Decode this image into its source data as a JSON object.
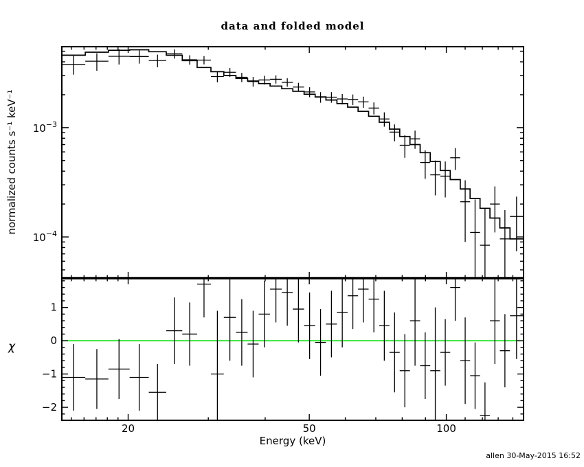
{
  "title": "data and folded model",
  "footer": "allen 30-May-2015 16:52",
  "colors": {
    "foreground": "#000000",
    "background": "#ffffff",
    "model_line": "#000000",
    "data_points": "#000000",
    "zero_line": "#00e000"
  },
  "chart_data": {
    "type": "scatter",
    "title": "data and folded model",
    "xlabel": "Energy (keV)",
    "x_scale": "log",
    "x_range_kev": [
      14.3,
      147.8
    ],
    "x_major_ticks": [
      {
        "value": 20,
        "label": "20"
      },
      {
        "value": 50,
        "label": "50"
      },
      {
        "value": 100,
        "label": "100"
      }
    ],
    "x_minor_ticks": [
      15,
      16,
      17,
      18,
      19,
      30,
      40,
      60,
      70,
      80,
      90,
      110,
      120,
      130,
      140
    ],
    "top_panel": {
      "ylabel": "normalized counts s⁻¹ keV⁻¹",
      "y_scale": "log",
      "y_range": [
        4.2e-05,
        0.0055
      ],
      "y_major_ticks": [
        {
          "value": 0.001,
          "base": "10",
          "exp": "−3"
        },
        {
          "value": 0.0001,
          "base": "10",
          "exp": "−4"
        }
      ],
      "y_minor_ticks": [
        0.005,
        0.004,
        0.003,
        0.002,
        0.0009,
        0.0008,
        0.0007,
        0.0006,
        0.0005,
        0.0004,
        0.0003,
        0.0002,
        9e-05,
        8e-05,
        7e-05,
        6e-05,
        5e-05
      ],
      "series": [
        "data",
        "folded model"
      ]
    },
    "bottom_panel": {
      "ylabel": "χ",
      "y_scale": "linear",
      "y_range": [
        -2.39,
        1.88
      ],
      "zero_line": 0,
      "y_major_ticks": [
        {
          "value": 1,
          "label": "1"
        },
        {
          "value": 0,
          "label": "0"
        },
        {
          "value": -1,
          "label": "−1"
        },
        {
          "value": -2,
          "label": "−2"
        }
      ],
      "y_minor_ticks": [
        1.8,
        1.6,
        1.4,
        1.2,
        0.8,
        0.6,
        0.4,
        0.2,
        -0.2,
        -0.4,
        -0.6,
        -0.8,
        -1.2,
        -1.4,
        -1.6,
        -1.8,
        -2.2
      ]
    },
    "bin_fields": [
      "e_lo_kev",
      "e_hi_kev",
      "model",
      "data",
      "data_err",
      "chi",
      "chi_err"
    ],
    "bins": [
      [
        14.3,
        16.1,
        0.0046,
        0.00379,
        0.00074,
        -1.1,
        1.0
      ],
      [
        16.1,
        18.1,
        0.0049,
        0.00405,
        0.00074,
        -1.15,
        0.9
      ],
      [
        18.1,
        20.15,
        0.0051,
        0.00449,
        0.00071,
        -0.85,
        0.9
      ],
      [
        20.15,
        22.2,
        0.00515,
        0.00447,
        0.00062,
        -1.1,
        1.0
      ],
      [
        22.2,
        24.25,
        0.00495,
        0.00411,
        0.00054,
        -1.55,
        0.85
      ],
      [
        24.25,
        26.3,
        0.0046,
        0.00474,
        0.00046,
        0.3,
        1.0
      ],
      [
        26.3,
        28.35,
        0.0041,
        0.00418,
        0.00041,
        0.2,
        0.95
      ],
      [
        28.35,
        30.4,
        0.00355,
        0.00415,
        0.00036,
        1.7,
        1.0
      ],
      [
        30.4,
        32.45,
        0.00325,
        0.00293,
        0.00033,
        -1.0,
        1.9
      ],
      [
        32.45,
        34.5,
        0.003,
        0.00321,
        0.0003,
        0.7,
        1.3
      ],
      [
        34.5,
        36.6,
        0.00282,
        0.00289,
        0.00028,
        0.25,
        1.0
      ],
      [
        36.6,
        38.7,
        0.00267,
        0.00264,
        0.00027,
        -0.1,
        1.0
      ],
      [
        38.7,
        41.0,
        0.00253,
        0.00273,
        0.00025,
        0.8,
        1.0
      ],
      [
        41.0,
        43.5,
        0.0024,
        0.00277,
        0.00024,
        1.55,
        1.0
      ],
      [
        43.5,
        46.0,
        0.00227,
        0.0026,
        0.00023,
        1.45,
        1.0
      ],
      [
        46.0,
        48.7,
        0.00215,
        0.00235,
        0.00022,
        0.95,
        1.0
      ],
      [
        48.7,
        51.5,
        0.00202,
        0.00212,
        0.00022,
        0.45,
        1.0
      ],
      [
        51.5,
        54.4,
        0.00191,
        0.0019,
        0.00021,
        -0.05,
        1.0
      ],
      [
        54.4,
        57.5,
        0.00179,
        0.0019,
        0.00021,
        0.5,
        1.0
      ],
      [
        57.5,
        60.7,
        0.00166,
        0.00183,
        0.0002,
        0.85,
        1.05
      ],
      [
        60.7,
        64.0,
        0.00154,
        0.00181,
        0.0002,
        1.35,
        1.0
      ],
      [
        64.0,
        67.5,
        0.00141,
        0.00172,
        0.0002,
        1.55,
        1.0
      ],
      [
        67.5,
        71.2,
        0.00127,
        0.00151,
        0.00019,
        1.25,
        1.0
      ],
      [
        71.2,
        75.0,
        0.00112,
        0.0012,
        0.00018,
        0.45,
        1.05
      ],
      [
        75.0,
        79.0,
        0.00097,
        0.00091,
        0.00016,
        -0.35,
        1.2
      ],
      [
        79.0,
        83.2,
        0.00083,
        0.00069,
        0.00016,
        -0.9,
        1.1
      ],
      [
        83.2,
        87.6,
        0.0007,
        0.00079,
        0.00015,
        0.6,
        1.35
      ],
      [
        87.6,
        92.2,
        0.00059,
        0.00048,
        0.00014,
        -0.75,
        1.0
      ],
      [
        92.2,
        97.0,
        0.00049,
        0.00037,
        0.00013,
        -0.9,
        1.9
      ],
      [
        97.0,
        102.0,
        0.000405,
        0.00036,
        0.00013,
        -0.35,
        1.0
      ],
      [
        102.0,
        107.3,
        0.000335,
        0.00053,
        0.00012,
        1.6,
        1.0
      ],
      [
        107.3,
        112.8,
        0.000275,
        0.00021,
        0.00012,
        -0.6,
        1.3
      ],
      [
        112.8,
        118.6,
        0.000225,
        0.00011,
        0.00011,
        -1.05,
        1.0
      ],
      [
        118.6,
        124.7,
        0.000183,
        8.4e-05,
        0.0001,
        -2.25,
        1.0
      ],
      [
        124.7,
        131.1,
        0.000149,
        0.0002,
        9e-05,
        0.6,
        1.3
      ],
      [
        131.1,
        138.0,
        0.000121,
        9.6e-05,
        8e-05,
        -0.3,
        1.1
      ],
      [
        138.0,
        147.5,
        9.6e-05,
        0.000154,
        8e-05,
        0.75,
        1.3
      ]
    ]
  }
}
